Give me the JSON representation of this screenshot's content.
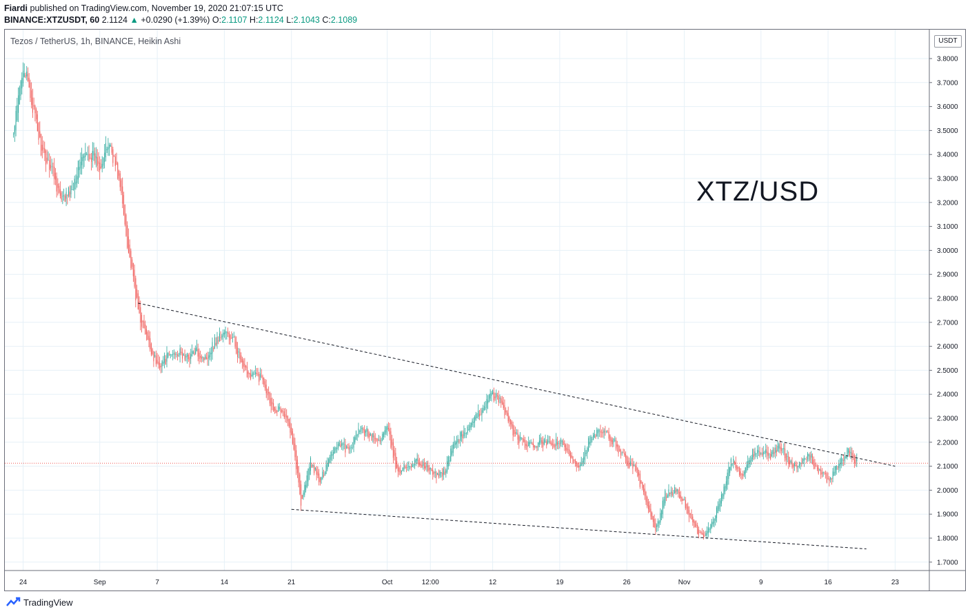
{
  "header": {
    "author": "Fiardi",
    "published_text": " published on TradingView.com, November 19, 2020 21:07:15 UTC",
    "symbol": "BINANCE:XTZUSDT, 60",
    "last": "2.1124",
    "change": "+0.0290 (+1.39%)",
    "o_label": "O:",
    "o_value": "2.1107",
    "h_label": "H:",
    "h_value": "2.1124",
    "l_label": "L:",
    "l_value": "2.1043",
    "c_label": "C:",
    "c_value": "2.1089"
  },
  "legend": "Tezos / TetherUS, 1h, BINANCE, Heikin Ashi",
  "annotation": "XTZ/USD",
  "currency_box": "USDT",
  "footer": {
    "brand": "TradingView"
  },
  "colors": {
    "up": "#26a69a",
    "down": "#ef5350",
    "grid": "#e6f0f7",
    "trendline": "#131722",
    "price_line": "#ef5350"
  },
  "chart_data": {
    "type": "candlestick",
    "style": "Heikin Ashi",
    "title": "Tezos / TetherUS, 1h, BINANCE, Heikin Ashi",
    "ylim": [
      1.65,
      3.9
    ],
    "y_ticks": [
      "3.8000",
      "3.7000",
      "3.6000",
      "3.5000",
      "3.4000",
      "3.3000",
      "3.2000",
      "3.1000",
      "3.0000",
      "2.9000",
      "2.8000",
      "2.7000",
      "2.6000",
      "2.5000",
      "2.4000",
      "2.3000",
      "2.2000",
      "2.1000",
      "2.0000",
      "1.9000",
      "1.8000",
      "1.7000"
    ],
    "x_ticks": [
      "24",
      "Sep",
      "7",
      "14",
      "21",
      "Oct",
      "12:00",
      "12",
      "19",
      "26",
      "Nov",
      "9",
      "16",
      "23"
    ],
    "grid": true,
    "current_price": 2.1124,
    "price_path": [
      [
        "Aug 23",
        3.48
      ],
      [
        "Aug 24",
        3.78
      ],
      [
        "Aug 25",
        3.6
      ],
      [
        "Aug 26",
        3.4
      ],
      [
        "Aug 27",
        3.35
      ],
      [
        "Aug 28",
        3.2
      ],
      [
        "Aug 29",
        3.25
      ],
      [
        "Aug 30",
        3.38
      ],
      [
        "Aug 31",
        3.4
      ],
      [
        "Sep 1",
        3.36
      ],
      [
        "Sep 2",
        3.45
      ],
      [
        "Sep 3",
        3.3
      ],
      [
        "Sep 4",
        3.0
      ],
      [
        "Sep 5",
        2.75
      ],
      [
        "Sep 6",
        2.62
      ],
      [
        "Sep 7",
        2.52
      ],
      [
        "Sep 8",
        2.55
      ],
      [
        "Sep 9",
        2.58
      ],
      [
        "Sep 10",
        2.55
      ],
      [
        "Sep 11",
        2.58
      ],
      [
        "Sep 12",
        2.55
      ],
      [
        "Sep 13",
        2.62
      ],
      [
        "Sep 14",
        2.66
      ],
      [
        "Sep 15",
        2.62
      ],
      [
        "Sep 16",
        2.5
      ],
      [
        "Sep 17",
        2.48
      ],
      [
        "Sep 18",
        2.47
      ],
      [
        "Sep 19",
        2.35
      ],
      [
        "Sep 20",
        2.33
      ],
      [
        "Sep 21",
        2.25
      ],
      [
        "Sep 22",
        1.95
      ],
      [
        "Sep 23",
        2.12
      ],
      [
        "Sep 24",
        2.03
      ],
      [
        "Sep 25",
        2.15
      ],
      [
        "Sep 26",
        2.2
      ],
      [
        "Sep 27",
        2.16
      ],
      [
        "Sep 28",
        2.25
      ],
      [
        "Sep 29",
        2.24
      ],
      [
        "Sep 30",
        2.2
      ],
      [
        "Oct 1",
        2.26
      ],
      [
        "Oct 2",
        2.08
      ],
      [
        "Oct 3",
        2.1
      ],
      [
        "Oct 4",
        2.12
      ],
      [
        "Oct 5",
        2.1
      ],
      [
        "Oct 6",
        2.06
      ],
      [
        "Oct 7",
        2.08
      ],
      [
        "Oct 8",
        2.2
      ],
      [
        "Oct 9",
        2.24
      ],
      [
        "Oct 10",
        2.28
      ],
      [
        "Oct 11",
        2.35
      ],
      [
        "Oct 12",
        2.4
      ],
      [
        "Oct 13",
        2.36
      ],
      [
        "Oct 14",
        2.25
      ],
      [
        "Oct 15",
        2.2
      ],
      [
        "Oct 16",
        2.18
      ],
      [
        "Oct 17",
        2.2
      ],
      [
        "Oct 18",
        2.19
      ],
      [
        "Oct 19",
        2.2
      ],
      [
        "Oct 20",
        2.15
      ],
      [
        "Oct 21",
        2.1
      ],
      [
        "Oct 22",
        2.2
      ],
      [
        "Oct 23",
        2.24
      ],
      [
        "Oct 24",
        2.23
      ],
      [
        "Oct 25",
        2.18
      ],
      [
        "Oct 26",
        2.12
      ],
      [
        "Oct 27",
        2.08
      ],
      [
        "Oct 28",
        1.95
      ],
      [
        "Oct 29",
        1.82
      ],
      [
        "Oct 30",
        1.98
      ],
      [
        "Oct 31",
        2.0
      ],
      [
        "Nov 1",
        1.95
      ],
      [
        "Nov 2",
        1.85
      ],
      [
        "Nov 3",
        1.8
      ],
      [
        "Nov 4",
        1.87
      ],
      [
        "Nov 5",
        2.0
      ],
      [
        "Nov 6",
        2.13
      ],
      [
        "Nov 7",
        2.05
      ],
      [
        "Nov 8",
        2.15
      ],
      [
        "Nov 9",
        2.16
      ],
      [
        "Nov 10",
        2.15
      ],
      [
        "Nov 11",
        2.18
      ],
      [
        "Nov 12",
        2.12
      ],
      [
        "Nov 13",
        2.1
      ],
      [
        "Nov 14",
        2.15
      ],
      [
        "Nov 15",
        2.08
      ],
      [
        "Nov 16",
        2.04
      ],
      [
        "Nov 17",
        2.1
      ],
      [
        "Nov 18",
        2.16
      ],
      [
        "Nov 19",
        2.1124
      ]
    ],
    "upper_trendline": [
      [
        "Sep 5",
        2.78
      ],
      [
        "Nov 23",
        2.1
      ]
    ],
    "lower_trendline": [
      [
        "Sep 21",
        1.92
      ],
      [
        "Nov 20",
        1.755
      ]
    ]
  }
}
